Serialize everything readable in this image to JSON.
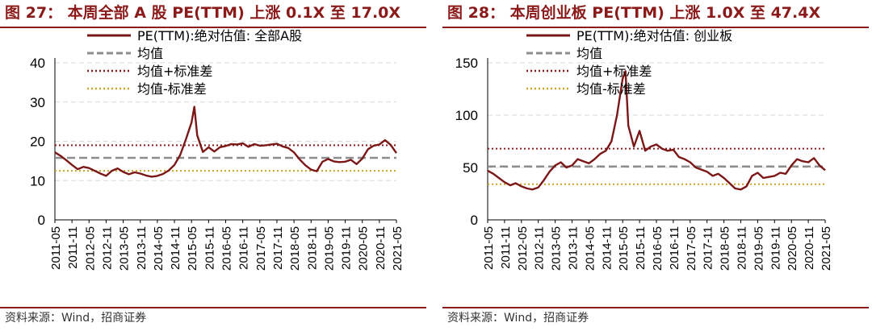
{
  "colors": {
    "series": "#7b1717",
    "mean": "#8c8c8c",
    "upper": "#8b1a1a",
    "lower": "#c9a227",
    "rule": "#8b1a1a",
    "grid": "#d9d9d9"
  },
  "chart_data": [
    {
      "type": "line",
      "title": "图 27： 本周全部 A 股 PE(TTM) 上涨 0.1X 至 17.0X",
      "source": "资料来源：Wind，招商证券",
      "ylim": [
        0,
        40
      ],
      "yticks": [
        0,
        10,
        20,
        30,
        40
      ],
      "grid": true,
      "legend_position": "top-left",
      "x_ticks": [
        "2011-05",
        "2011-11",
        "2012-05",
        "2012-11",
        "2013-05",
        "2013-11",
        "2014-05",
        "2014-11",
        "2015-05",
        "2015-11",
        "2016-05",
        "2016-11",
        "2017-05",
        "2017-11",
        "2018-05",
        "2018-11",
        "2019-05",
        "2019-11",
        "2020-05",
        "2020-11",
        "2021-05"
      ],
      "legend": [
        "PE(TTM):绝对估值: 全部A股",
        "均值",
        "均值+标准差",
        "均值-标准差"
      ],
      "mean": 15.8,
      "upper": 19.0,
      "lower": 12.5,
      "series": {
        "name": "PE(TTM):绝对估值: 全部A股",
        "x": [
          "2011-05",
          "2011-07",
          "2011-09",
          "2011-11",
          "2012-01",
          "2012-03",
          "2012-05",
          "2012-07",
          "2012-09",
          "2012-11",
          "2013-01",
          "2013-03",
          "2013-05",
          "2013-07",
          "2013-09",
          "2013-11",
          "2014-01",
          "2014-03",
          "2014-05",
          "2014-07",
          "2014-09",
          "2014-11",
          "2015-01",
          "2015-03",
          "2015-05",
          "2015-06",
          "2015-07",
          "2015-09",
          "2015-11",
          "2016-01",
          "2016-03",
          "2016-05",
          "2016-07",
          "2016-09",
          "2016-11",
          "2017-01",
          "2017-03",
          "2017-05",
          "2017-07",
          "2017-09",
          "2017-11",
          "2018-01",
          "2018-03",
          "2018-05",
          "2018-07",
          "2018-09",
          "2018-11",
          "2019-01",
          "2019-03",
          "2019-05",
          "2019-07",
          "2019-09",
          "2019-11",
          "2020-01",
          "2020-03",
          "2020-05",
          "2020-07",
          "2020-09",
          "2020-11",
          "2021-01",
          "2021-03",
          "2021-05"
        ],
        "y": [
          17.2,
          16.3,
          15.2,
          14.0,
          12.9,
          13.5,
          13.2,
          12.5,
          11.8,
          11.2,
          12.5,
          13.1,
          12.2,
          11.6,
          12.1,
          11.8,
          11.3,
          11.0,
          11.2,
          11.7,
          12.6,
          14.0,
          16.5,
          20.5,
          24.8,
          28.8,
          21.5,
          17.3,
          18.5,
          17.4,
          18.5,
          18.8,
          19.3,
          19.2,
          19.5,
          18.6,
          19.3,
          18.9,
          19.0,
          19.2,
          19.4,
          18.7,
          18.3,
          17.2,
          15.4,
          13.9,
          12.8,
          12.4,
          14.8,
          15.5,
          14.9,
          14.7,
          14.8,
          15.3,
          14.2,
          15.6,
          18.0,
          18.9,
          19.2,
          20.3,
          19.1,
          17.0
        ]
      }
    },
    {
      "type": "line",
      "title": "图 28： 本周创业板 PE(TTM) 上涨 1.0X 至 47.4X",
      "source": "资料来源：Wind，招商证券",
      "ylim": [
        0,
        150
      ],
      "yticks": [
        0,
        50,
        100,
        150
      ],
      "grid": true,
      "legend_position": "top-left",
      "x_ticks": [
        "2011-05",
        "2011-11",
        "2012-05",
        "2012-11",
        "2013-05",
        "2013-11",
        "2014-05",
        "2014-11",
        "2015-05",
        "2015-11",
        "2016-05",
        "2016-11",
        "2017-05",
        "2017-11",
        "2018-05",
        "2018-11",
        "2019-05",
        "2019-11",
        "2020-05",
        "2020-11",
        "2021-05"
      ],
      "legend": [
        "PE(TTM):绝对估值: 创业板",
        "均值",
        "均值+标准差",
        "均值-标准差"
      ],
      "mean": 51,
      "upper": 68,
      "lower": 34,
      "series": {
        "name": "PE(TTM):绝对估值: 创业板",
        "x": [
          "2011-05",
          "2011-07",
          "2011-09",
          "2011-11",
          "2012-01",
          "2012-03",
          "2012-05",
          "2012-07",
          "2012-09",
          "2012-11",
          "2013-01",
          "2013-03",
          "2013-05",
          "2013-07",
          "2013-09",
          "2013-11",
          "2014-01",
          "2014-03",
          "2014-05",
          "2014-07",
          "2014-09",
          "2014-11",
          "2015-01",
          "2015-03",
          "2015-05",
          "2015-06",
          "2015-07",
          "2015-09",
          "2015-11",
          "2016-01",
          "2016-03",
          "2016-05",
          "2016-07",
          "2016-09",
          "2016-11",
          "2017-01",
          "2017-03",
          "2017-05",
          "2017-07",
          "2017-09",
          "2017-11",
          "2018-01",
          "2018-03",
          "2018-05",
          "2018-07",
          "2018-09",
          "2018-11",
          "2019-01",
          "2019-03",
          "2019-05",
          "2019-07",
          "2019-09",
          "2019-11",
          "2020-01",
          "2020-03",
          "2020-05",
          "2020-07",
          "2020-09",
          "2020-11",
          "2021-01",
          "2021-03",
          "2021-05"
        ],
        "y": [
          47,
          44,
          40,
          36,
          33,
          35,
          32,
          30,
          29,
          31,
          38,
          46,
          52,
          55,
          50,
          52,
          58,
          56,
          54,
          58,
          63,
          66,
          75,
          100,
          135,
          142,
          90,
          70,
          85,
          66,
          70,
          72,
          68,
          66,
          67,
          60,
          58,
          55,
          50,
          48,
          46,
          42,
          44,
          40,
          35,
          30,
          29,
          32,
          42,
          45,
          40,
          41,
          42,
          45,
          44,
          52,
          58,
          56,
          55,
          59,
          52,
          47.4
        ]
      }
    }
  ]
}
